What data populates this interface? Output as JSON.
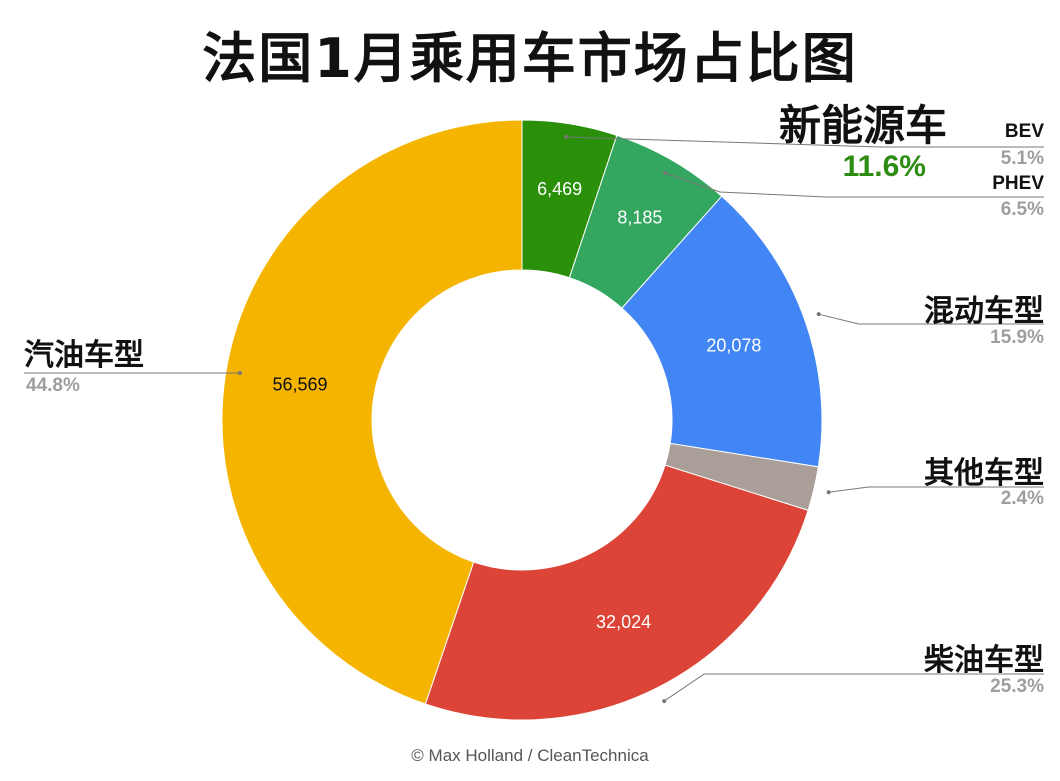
{
  "title": "法国1月乘用车市场占比图",
  "nev": {
    "title": "新能源车",
    "percent": "11.6%"
  },
  "chart_data": {
    "type": "pie",
    "donut": true,
    "title": "法国1月乘用车市场占比图",
    "slices": [
      {
        "label": "BEV",
        "value": 6469,
        "value_label": "6,469",
        "percent": "5.1%",
        "color": "#2a900a"
      },
      {
        "label": "PHEV",
        "value": 8185,
        "value_label": "8,185",
        "percent": "6.5%",
        "color": "#33a660"
      },
      {
        "label": "混动车型",
        "value": 20078,
        "value_label": "20,078",
        "percent": "15.9%",
        "color": "#4285f4"
      },
      {
        "label": "其他车型",
        "value": 3000,
        "value_label": "",
        "percent": "2.4%",
        "color": "#a99e98"
      },
      {
        "label": "柴油车型",
        "value": 32024,
        "value_label": "32,024",
        "percent": "25.3%",
        "color": "#db4437"
      },
      {
        "label": "汽油车型",
        "value": 56569,
        "value_label": "56,569",
        "percent": "44.8%",
        "color": "#f4b400"
      }
    ]
  },
  "credit": "© Max Holland / CleanTechnica"
}
